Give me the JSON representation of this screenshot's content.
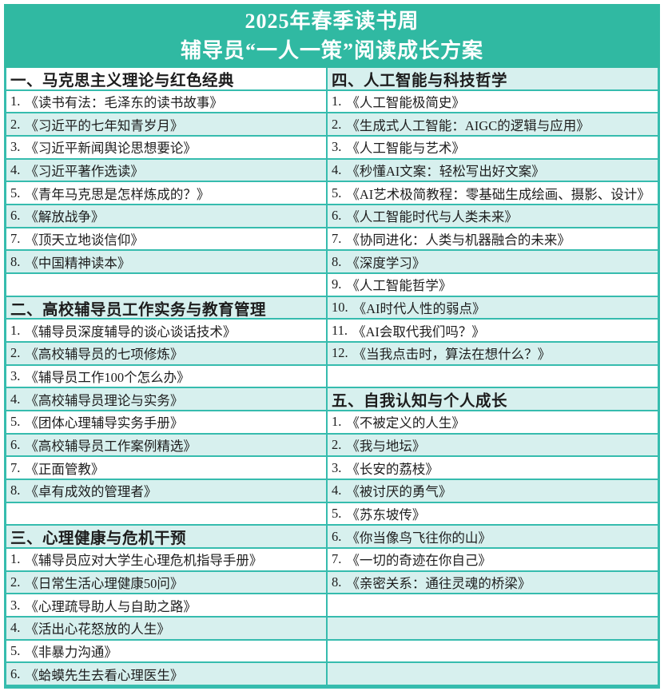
{
  "title": {
    "line1": "2025年春季读书周",
    "line2": "辅导员“一人一策”阅读成长方案"
  },
  "colors": {
    "banner": "#30b9a2",
    "border": "#36bcae",
    "band": "#d7f0ee",
    "text": "#1d1d1d",
    "title_text": "#ffffff"
  },
  "table": {
    "columns": [
      {
        "name": "left",
        "rows": [
          {
            "kind": "section",
            "text": "一、马克思主义理论与红色经典",
            "shaded": false
          },
          {
            "kind": "item",
            "num": "1.",
            "title": "《读书有法：毛泽东的读书故事》",
            "shaded": false
          },
          {
            "kind": "item",
            "num": "2.",
            "title": "《习近平的七年知青岁月》",
            "shaded": true
          },
          {
            "kind": "item",
            "num": "3.",
            "title": "《习近平新闻舆论思想要论》",
            "shaded": false
          },
          {
            "kind": "item",
            "num": "4.",
            "title": "《习近平著作选读》",
            "shaded": true
          },
          {
            "kind": "item",
            "num": "5.",
            "title": "《青年马克思是怎样炼成的？》",
            "shaded": false
          },
          {
            "kind": "item",
            "num": "6.",
            "title": "《解放战争》",
            "shaded": true
          },
          {
            "kind": "item",
            "num": "7.",
            "title": "《顶天立地谈信仰》",
            "shaded": false
          },
          {
            "kind": "item",
            "num": "8.",
            "title": "《中国精神读本》",
            "shaded": true
          },
          {
            "kind": "empty",
            "shaded": false
          },
          {
            "kind": "section",
            "text": "二、高校辅导员工作实务与教育管理",
            "shaded": true
          },
          {
            "kind": "item",
            "num": "1.",
            "title": "《辅导员深度辅导的谈心谈话技术》",
            "shaded": false
          },
          {
            "kind": "item",
            "num": "2.",
            "title": "《高校辅导员的七项修炼》",
            "shaded": true
          },
          {
            "kind": "item",
            "num": "3.",
            "title": "《辅导员工作100个怎么办》",
            "shaded": false
          },
          {
            "kind": "item",
            "num": "4.",
            "title": "《高校辅导员理论与实务》",
            "shaded": true
          },
          {
            "kind": "item",
            "num": "5.",
            "title": "《团体心理辅导实务手册》",
            "shaded": false
          },
          {
            "kind": "item",
            "num": "6.",
            "title": "《高校辅导员工作案例精选》",
            "shaded": true
          },
          {
            "kind": "item",
            "num": "7.",
            "title": "《正面管教》",
            "shaded": false
          },
          {
            "kind": "item",
            "num": "8.",
            "title": "《卓有成效的管理者》",
            "shaded": true
          },
          {
            "kind": "empty",
            "shaded": false
          },
          {
            "kind": "section",
            "text": "三、心理健康与危机干预",
            "shaded": true
          },
          {
            "kind": "item",
            "num": "1.",
            "title": "《辅导员应对大学生心理危机指导手册》",
            "shaded": false
          },
          {
            "kind": "item",
            "num": "2.",
            "title": "《日常生活心理健康50问》",
            "shaded": true
          },
          {
            "kind": "item",
            "num": "3.",
            "title": "《心理疏导助人与自助之路》",
            "shaded": false
          },
          {
            "kind": "item",
            "num": "4.",
            "title": "《活出心花怒放的人生》",
            "shaded": true
          },
          {
            "kind": "item",
            "num": "5.",
            "title": "《非暴力沟通》",
            "shaded": false
          },
          {
            "kind": "item",
            "num": "6.",
            "title": "《蛤蟆先生去看心理医生》",
            "shaded": true
          }
        ]
      },
      {
        "name": "right",
        "rows": [
          {
            "kind": "section",
            "text": "四、人工智能与科技哲学",
            "shaded": true
          },
          {
            "kind": "item",
            "num": "1.",
            "title": "《人工智能极简史》",
            "shaded": false
          },
          {
            "kind": "item",
            "num": "2.",
            "title": "《生成式人工智能：AIGC的逻辑与应用》",
            "shaded": true
          },
          {
            "kind": "item",
            "num": "3.",
            "title": "《人工智能与艺术》",
            "shaded": false
          },
          {
            "kind": "item",
            "num": "4.",
            "title": "《秒懂AI文案：轻松写出好文案》",
            "shaded": true
          },
          {
            "kind": "item",
            "num": "5.",
            "title": "《AI艺术极简教程：零基础生成绘画、摄影、设计》",
            "shaded": false
          },
          {
            "kind": "item",
            "num": "6.",
            "title": "《人工智能时代与人类未来》",
            "shaded": true
          },
          {
            "kind": "item",
            "num": "7.",
            "title": "《协同进化：人类与机器融合的未来》",
            "shaded": false
          },
          {
            "kind": "item",
            "num": "8.",
            "title": "《深度学习》",
            "shaded": true
          },
          {
            "kind": "item",
            "num": "9.",
            "title": "《人工智能哲学》",
            "shaded": false
          },
          {
            "kind": "item",
            "num": "10.",
            "title": "《AI时代人性的弱点》",
            "shaded": true
          },
          {
            "kind": "item",
            "num": "11.",
            "title": "《AI会取代我们吗？》",
            "shaded": false
          },
          {
            "kind": "item",
            "num": "12.",
            "title": "《当我点击时，算法在想什么？》",
            "shaded": true
          },
          {
            "kind": "empty",
            "shaded": false
          },
          {
            "kind": "section",
            "text": "五、自我认知与个人成长",
            "shaded": true
          },
          {
            "kind": "item",
            "num": "1.",
            "title": "《不被定义的人生》",
            "shaded": false
          },
          {
            "kind": "item",
            "num": "2.",
            "title": "《我与地坛》",
            "shaded": true
          },
          {
            "kind": "item",
            "num": "3.",
            "title": "《长安的荔枝》",
            "shaded": false
          },
          {
            "kind": "item",
            "num": "4.",
            "title": "《被讨厌的勇气》",
            "shaded": true
          },
          {
            "kind": "item",
            "num": "5.",
            "title": "《苏东坡传》",
            "shaded": false
          },
          {
            "kind": "item",
            "num": "6.",
            "title": "《你当像鸟飞往你的山》",
            "shaded": true
          },
          {
            "kind": "item",
            "num": "7.",
            "title": "《一切的奇迹在你自己》",
            "shaded": false
          },
          {
            "kind": "item",
            "num": "8.",
            "title": "《亲密关系：通往灵魂的桥梁》",
            "shaded": true
          },
          {
            "kind": "empty",
            "shaded": false
          },
          {
            "kind": "empty",
            "shaded": true
          },
          {
            "kind": "empty",
            "shaded": false
          },
          {
            "kind": "empty",
            "shaded": true
          }
        ]
      }
    ]
  }
}
